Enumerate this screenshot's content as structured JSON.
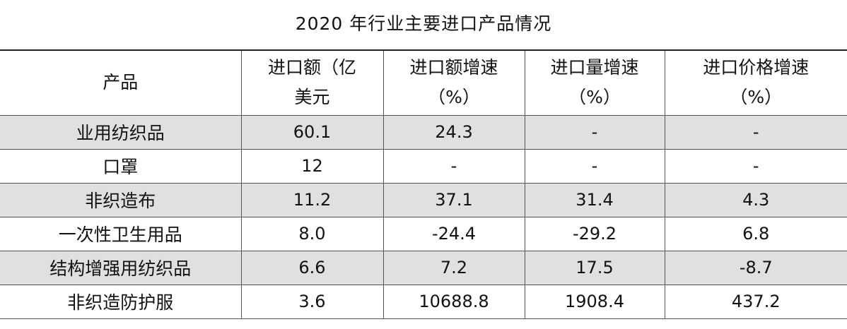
{
  "title": "2020 年行业主要进口产品情况",
  "header": {
    "product": "产品",
    "import_value_line1": "进口额（亿",
    "import_value_line2": "美元",
    "value_growth_line1": "进口额增速",
    "value_growth_line2": "（%）",
    "volume_growth_line1": "进口量增速",
    "volume_growth_line2": "（%）",
    "price_growth_line1": "进口价格增速",
    "price_growth_line2": "（%）"
  },
  "rows": [
    {
      "product": "业用纺织品",
      "value": "60.1",
      "value_growth": "24.3",
      "volume_growth": "-",
      "price_growth": "-"
    },
    {
      "product": "口罩",
      "value": "12",
      "value_growth": "-",
      "volume_growth": "-",
      "price_growth": "-"
    },
    {
      "product": "非织造布",
      "value": "11.2",
      "value_growth": "37.1",
      "volume_growth": "31.4",
      "price_growth": "4.3"
    },
    {
      "product": "一次性卫生用品",
      "value": "8.0",
      "value_growth": "-24.4",
      "volume_growth": "-29.2",
      "price_growth": "6.8"
    },
    {
      "product": "结构增强用纺织品",
      "value": "6.6",
      "value_growth": "7.2",
      "volume_growth": "17.5",
      "price_growth": "-8.7"
    },
    {
      "product": "非织造防护服",
      "value": "3.6",
      "value_growth": "10688.8",
      "volume_growth": "1908.4",
      "price_growth": "437.2"
    }
  ],
  "colors": {
    "shaded_row": "#e0e0e0",
    "border": "#555555"
  }
}
